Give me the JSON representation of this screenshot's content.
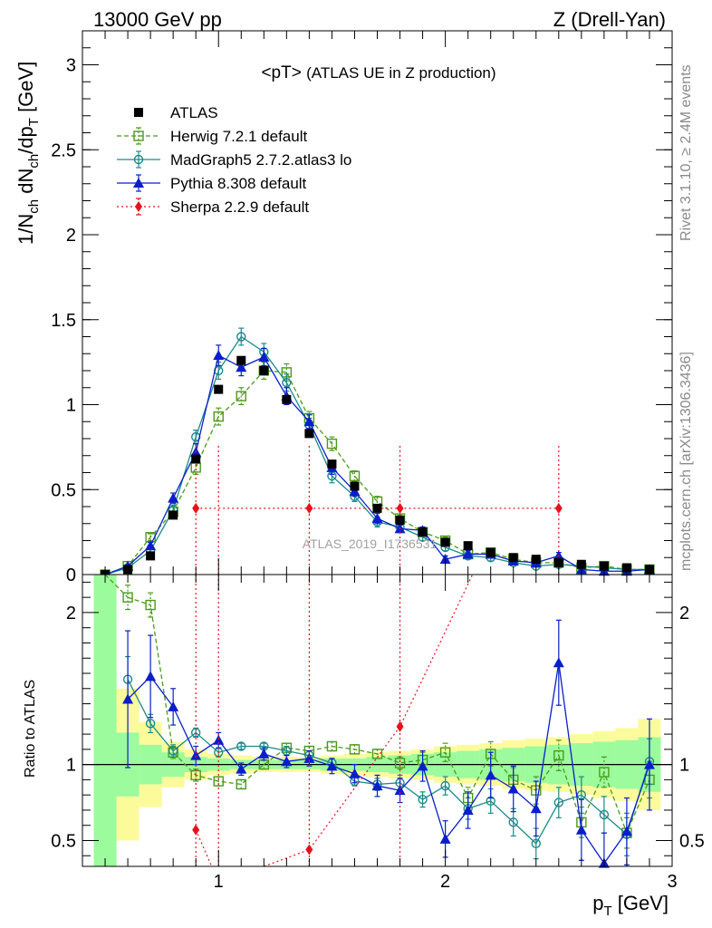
{
  "header": {
    "left": "13000 GeV pp",
    "right": "Z (Drell-Yan)"
  },
  "side": {
    "rivet": "Rivet 3.1.10, ≥ 2.4M events",
    "mcplots": "mcplots.cern.ch [arXiv:1306.3436]"
  },
  "colors": {
    "atlas": "#000000",
    "herwig": "#4b9a1c",
    "madgraph": "#1d8a8a",
    "pythia": "#0a1ecc",
    "sherpa": "#e8111b",
    "band_inner": "#9cfb9c",
    "band_outer": "#fbfb9c"
  },
  "chart_data": [
    {
      "type": "scatter",
      "title": "<pT>",
      "subtitle": "(ATLAS UE in Z production)",
      "watermark": "ATLAS_2019_I1736531",
      "xlabel": "",
      "ylabel": "1/N_ch dN_ch/dp_T [GeV]",
      "ylabel_parts": {
        "a": "1/N",
        "b": "ch",
        "c": " dN",
        "d": "ch",
        "e": "/dp",
        "f": "T",
        "g": " [GeV]"
      },
      "xlim": [
        0.4,
        3.0
      ],
      "ylim": [
        0,
        3.2
      ],
      "yticks": [
        0,
        0.5,
        1,
        1.5,
        2,
        2.5,
        3
      ],
      "ytick_labels": [
        "0",
        "0.5",
        "1",
        "1.5",
        "2",
        "2.5",
        "3"
      ],
      "legend_position": "top-left",
      "x": [
        0.5,
        0.6,
        0.7,
        0.8,
        0.9,
        1.0,
        1.1,
        1.2,
        1.3,
        1.4,
        1.5,
        1.6,
        1.7,
        1.8,
        1.9,
        2.0,
        2.1,
        2.2,
        2.3,
        2.4,
        2.5,
        2.6,
        2.7,
        2.8,
        2.9
      ],
      "series": [
        {
          "name": "ATLAS",
          "key": "atlas",
          "values": [
            0.0,
            0.03,
            0.11,
            0.35,
            0.68,
            1.09,
            1.26,
            1.2,
            1.03,
            0.83,
            0.65,
            0.52,
            0.39,
            0.32,
            0.25,
            0.19,
            0.17,
            0.13,
            0.1,
            0.09,
            0.07,
            0.06,
            0.05,
            0.04,
            0.03
          ]
        },
        {
          "name": "Herwig 7.2.1 default",
          "key": "herwig",
          "values": [
            0.0,
            0.05,
            0.22,
            0.37,
            0.63,
            0.93,
            1.05,
            1.2,
            1.19,
            0.92,
            0.77,
            0.58,
            0.43,
            0.33,
            0.25,
            0.2,
            0.12,
            0.13,
            0.09,
            0.07,
            0.07,
            0.04,
            0.05,
            0.03,
            0.03
          ],
          "errors": [
            0.0,
            0.01,
            0.02,
            0.03,
            0.04,
            0.05,
            0.05,
            0.05,
            0.05,
            0.04,
            0.04,
            0.03,
            0.03,
            0.02,
            0.02,
            0.02,
            0.02,
            0.02,
            0.01,
            0.01,
            0.01,
            0.01,
            0.01,
            0.01,
            0.01
          ]
        },
        {
          "name": "MadGraph5 2.7.2.atlas3 lo",
          "key": "madgraph",
          "values": [
            0.0,
            0.04,
            0.14,
            0.38,
            0.81,
            1.2,
            1.4,
            1.31,
            1.13,
            0.88,
            0.58,
            0.46,
            0.31,
            0.28,
            0.22,
            0.16,
            0.11,
            0.1,
            0.07,
            0.05,
            0.06,
            0.05,
            0.04,
            0.03,
            0.03
          ],
          "errors": [
            0.0,
            0.01,
            0.02,
            0.03,
            0.04,
            0.05,
            0.05,
            0.05,
            0.05,
            0.04,
            0.04,
            0.03,
            0.03,
            0.02,
            0.02,
            0.02,
            0.02,
            0.02,
            0.01,
            0.01,
            0.01,
            0.01,
            0.01,
            0.01,
            0.01
          ]
        },
        {
          "name": "Pythia 8.308 default",
          "key": "pythia",
          "values": [
            0.0,
            0.05,
            0.17,
            0.45,
            0.72,
            1.29,
            1.22,
            1.28,
            1.05,
            0.9,
            0.63,
            0.49,
            0.33,
            0.27,
            0.26,
            0.09,
            0.12,
            0.12,
            0.08,
            0.07,
            0.11,
            0.03,
            0.02,
            0.02,
            0.03
          ],
          "errors": [
            0.0,
            0.01,
            0.02,
            0.03,
            0.05,
            0.06,
            0.05,
            0.05,
            0.05,
            0.04,
            0.04,
            0.03,
            0.03,
            0.02,
            0.02,
            0.02,
            0.02,
            0.02,
            0.01,
            0.01,
            0.02,
            0.01,
            0.01,
            0.01,
            0.01
          ]
        },
        {
          "name": "Sherpa 2.2.9 default",
          "key": "sherpa",
          "points": [
            {
              "x": 0.9,
              "xlo": 0.9,
              "xhi": 1.0,
              "y": 0.39,
              "ylo": 0.0,
              "yhi": 0.77
            },
            {
              "x": 1.4,
              "xlo": 1.0,
              "xhi": 1.8,
              "y": 0.39,
              "ylo": 0.0,
              "yhi": 0.77
            },
            {
              "x": 1.8,
              "xlo": 1.8,
              "xhi": 1.8,
              "y": 0.39,
              "ylo": 0.0,
              "yhi": 0.77
            },
            {
              "x": 2.5,
              "xlo": 1.8,
              "xhi": 2.5,
              "y": 0.39,
              "ylo": 0.0,
              "yhi": 0.77
            }
          ]
        }
      ]
    },
    {
      "type": "scatter",
      "title": "",
      "xlabel": "p_T [GeV]",
      "xlabel_parts": {
        "a": "p",
        "b": "T",
        "c": " [GeV]"
      },
      "ylabel": "Ratio to ATLAS",
      "xlim": [
        0.4,
        3.0
      ],
      "ylim": [
        0.33,
        2.25
      ],
      "xticks": [
        1,
        2,
        3
      ],
      "xtick_labels": [
        "1",
        "2",
        "3"
      ],
      "yticks": [
        0.5,
        1,
        2
      ],
      "ytick_labels": [
        "0.5",
        "1",
        "2"
      ],
      "reference_line": 1,
      "band": {
        "x_edges": [
          0.45,
          0.55,
          0.65,
          0.75,
          0.85,
          0.95,
          1.05,
          1.15,
          1.25,
          1.35,
          1.45,
          1.55,
          1.65,
          1.75,
          1.85,
          1.95,
          2.05,
          2.15,
          2.25,
          2.35,
          2.45,
          2.55,
          2.65,
          2.75,
          2.85,
          2.95
        ],
        "inner_lo": [
          0.33,
          0.79,
          0.87,
          0.92,
          0.95,
          0.96,
          0.97,
          0.97,
          0.97,
          0.97,
          0.96,
          0.96,
          0.95,
          0.94,
          0.93,
          0.92,
          0.91,
          0.9,
          0.89,
          0.88,
          0.87,
          0.86,
          0.85,
          0.84,
          0.82
        ],
        "inner_hi": [
          2.25,
          1.21,
          1.13,
          1.08,
          1.05,
          1.04,
          1.03,
          1.03,
          1.03,
          1.03,
          1.04,
          1.04,
          1.05,
          1.06,
          1.07,
          1.08,
          1.09,
          1.1,
          1.11,
          1.12,
          1.13,
          1.14,
          1.15,
          1.16,
          1.18
        ],
        "outer_lo": [
          0.33,
          0.5,
          0.72,
          0.85,
          0.9,
          0.93,
          0.94,
          0.95,
          0.95,
          0.95,
          0.94,
          0.93,
          0.92,
          0.91,
          0.9,
          0.88,
          0.87,
          0.86,
          0.84,
          0.83,
          0.82,
          0.8,
          0.78,
          0.76,
          0.7
        ],
        "outer_hi": [
          2.25,
          1.5,
          1.28,
          1.15,
          1.1,
          1.07,
          1.06,
          1.05,
          1.05,
          1.05,
          1.06,
          1.07,
          1.08,
          1.09,
          1.1,
          1.12,
          1.13,
          1.14,
          1.16,
          1.17,
          1.18,
          1.2,
          1.22,
          1.24,
          1.3
        ]
      },
      "x": [
        0.6,
        0.7,
        0.8,
        0.9,
        1.0,
        1.1,
        1.2,
        1.3,
        1.4,
        1.5,
        1.6,
        1.7,
        1.8,
        1.9,
        2.0,
        2.1,
        2.2,
        2.3,
        2.4,
        2.5,
        2.6,
        2.7,
        2.8,
        2.9
      ],
      "series": [
        {
          "key": "herwig",
          "values": [
            2.1,
            2.05,
            1.08,
            0.93,
            0.89,
            0.87,
            1.0,
            1.11,
            1.09,
            1.12,
            1.1,
            1.07,
            1.01,
            1.03,
            1.08,
            0.78,
            1.07,
            0.9,
            0.83,
            1.06,
            0.62,
            0.95,
            0.55,
            0.9
          ],
          "errors": [
            0.08,
            0.08,
            0.04,
            0.04,
            0.03,
            0.03,
            0.03,
            0.03,
            0.03,
            0.03,
            0.03,
            0.03,
            0.04,
            0.05,
            0.06,
            0.07,
            0.08,
            0.08,
            0.09,
            0.1,
            0.1,
            0.1,
            0.1,
            0.12
          ]
        },
        {
          "key": "madgraph",
          "values": [
            1.56,
            1.27,
            1.09,
            1.21,
            1.08,
            1.12,
            1.12,
            1.09,
            1.06,
            1.01,
            0.89,
            0.87,
            0.88,
            0.77,
            0.86,
            0.71,
            0.76,
            0.62,
            0.48,
            0.75,
            0.8,
            0.67,
            0.54,
            1.02
          ],
          "errors": [
            0.15,
            0.06,
            0.04,
            0.03,
            0.03,
            0.02,
            0.02,
            0.03,
            0.03,
            0.03,
            0.03,
            0.04,
            0.05,
            0.05,
            0.06,
            0.07,
            0.08,
            0.09,
            0.1,
            0.1,
            0.12,
            0.12,
            0.14,
            0.15
          ]
        },
        {
          "key": "pythia",
          "values": [
            1.43,
            1.58,
            1.38,
            1.06,
            1.16,
            0.97,
            1.07,
            1.02,
            1.04,
            0.99,
            0.94,
            0.86,
            0.83,
            0.99,
            0.51,
            0.7,
            0.93,
            0.84,
            0.71,
            1.67,
            0.57,
            0.35,
            0.56,
            1.0
          ],
          "errors": [
            0.45,
            0.27,
            0.12,
            0.06,
            0.05,
            0.04,
            0.04,
            0.04,
            0.05,
            0.05,
            0.06,
            0.07,
            0.08,
            0.1,
            0.12,
            0.12,
            0.15,
            0.15,
            0.18,
            0.28,
            0.2,
            0.2,
            0.22,
            0.3
          ]
        },
        {
          "key": "sherpa",
          "points": [
            {
              "x": 0.9,
              "y": 0.57,
              "xlo": 0.9,
              "xhi": 0.9,
              "ylo": 0.33,
              "yhi": 0.57
            },
            {
              "x": 1.4,
              "y": 0.44,
              "xlo": 1.2,
              "xhi": 1.4,
              "ylo": 0.33,
              "yhi": 2.25
            },
            {
              "x": 1.8,
              "y": 1.25,
              "xlo": 1.4,
              "xhi": 2.12,
              "ylo": 0.33,
              "yhi": 2.25
            }
          ]
        }
      ]
    }
  ]
}
